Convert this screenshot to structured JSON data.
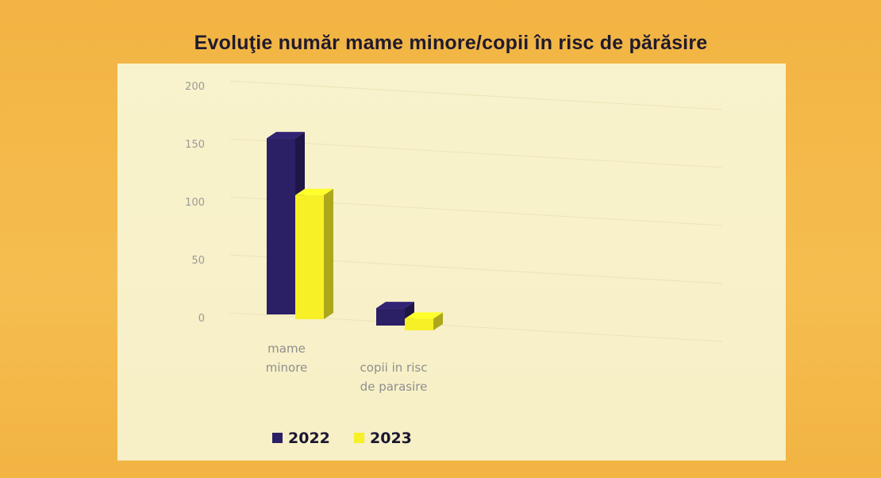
{
  "chart_data": {
    "type": "bar",
    "title": "Evoluţie număr mame minore/copii în risc de părăsire",
    "categories": [
      [
        "mame",
        "minore"
      ],
      [
        "copii in risc",
        "de parasire"
      ]
    ],
    "series": [
      {
        "name": "2022",
        "values": [
          152,
          15
        ],
        "color": "#2b1f66"
      },
      {
        "name": "2023",
        "values": [
          107,
          10
        ],
        "color": "#f7f026"
      }
    ],
    "yticks": [
      "200",
      "150",
      "100",
      "50",
      "0"
    ],
    "ylim": [
      0,
      200
    ],
    "grid": true,
    "legend_position": "bottom",
    "style": "3d-bar"
  },
  "colors": {
    "background": "#f3b746",
    "plot_background": "#f8f3cc",
    "title": "#1f1a2e"
  }
}
